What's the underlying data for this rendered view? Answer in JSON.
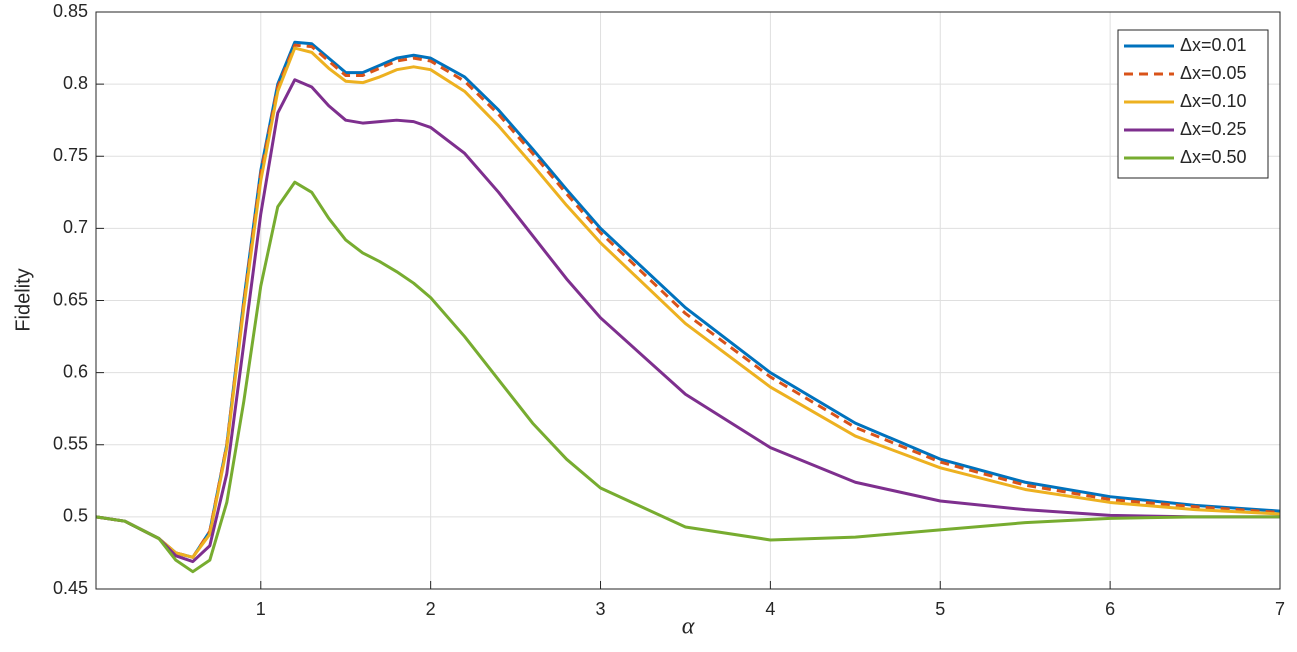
{
  "chart_data": {
    "type": "line",
    "xlabel": "α",
    "ylabel": "Fidelity",
    "x": [
      0.03,
      0.2,
      0.4,
      0.5,
      0.6,
      0.7,
      0.8,
      0.9,
      1.0,
      1.1,
      1.2,
      1.3,
      1.4,
      1.5,
      1.6,
      1.7,
      1.8,
      1.9,
      2.0,
      2.2,
      2.4,
      2.6,
      2.8,
      3.0,
      3.5,
      4.0,
      4.5,
      5.0,
      5.5,
      6.0,
      6.5,
      7.0
    ],
    "series": [
      {
        "name": "Δx=0.01",
        "color": "#0072bd",
        "linestyle": "solid",
        "values": [
          0.5,
          0.497,
          0.485,
          0.475,
          0.472,
          0.49,
          0.55,
          0.65,
          0.74,
          0.8,
          0.829,
          0.828,
          0.818,
          0.808,
          0.808,
          0.813,
          0.818,
          0.82,
          0.818,
          0.805,
          0.782,
          0.755,
          0.727,
          0.7,
          0.645,
          0.6,
          0.565,
          0.54,
          0.524,
          0.514,
          0.508,
          0.504
        ]
      },
      {
        "name": "Δx=0.05",
        "color": "#d95319",
        "linestyle": "dashed",
        "values": [
          0.5,
          0.497,
          0.485,
          0.475,
          0.472,
          0.49,
          0.55,
          0.648,
          0.738,
          0.798,
          0.827,
          0.826,
          0.816,
          0.806,
          0.806,
          0.811,
          0.816,
          0.818,
          0.816,
          0.802,
          0.779,
          0.752,
          0.724,
          0.697,
          0.641,
          0.597,
          0.562,
          0.538,
          0.522,
          0.512,
          0.507,
          0.503
        ]
      },
      {
        "name": "Δx=0.10",
        "color": "#edb120",
        "linestyle": "solid",
        "values": [
          0.5,
          0.497,
          0.485,
          0.475,
          0.472,
          0.488,
          0.548,
          0.645,
          0.733,
          0.795,
          0.825,
          0.822,
          0.811,
          0.802,
          0.801,
          0.805,
          0.81,
          0.812,
          0.81,
          0.795,
          0.771,
          0.744,
          0.716,
          0.69,
          0.634,
          0.59,
          0.556,
          0.534,
          0.519,
          0.51,
          0.505,
          0.502
        ]
      },
      {
        "name": "Δx=0.25",
        "color": "#7e2f8e",
        "linestyle": "solid",
        "values": [
          0.5,
          0.497,
          0.485,
          0.473,
          0.469,
          0.48,
          0.53,
          0.62,
          0.71,
          0.78,
          0.803,
          0.798,
          0.785,
          0.775,
          0.773,
          0.774,
          0.775,
          0.774,
          0.77,
          0.752,
          0.725,
          0.695,
          0.665,
          0.638,
          0.585,
          0.548,
          0.524,
          0.511,
          0.505,
          0.501,
          0.5,
          0.5
        ]
      },
      {
        "name": "Δx=0.50",
        "color": "#77ac30",
        "linestyle": "solid",
        "values": [
          0.5,
          0.497,
          0.485,
          0.47,
          0.462,
          0.47,
          0.51,
          0.58,
          0.66,
          0.715,
          0.732,
          0.725,
          0.707,
          0.692,
          0.683,
          0.677,
          0.67,
          0.662,
          0.652,
          0.625,
          0.595,
          0.565,
          0.54,
          0.52,
          0.493,
          0.484,
          0.486,
          0.491,
          0.496,
          0.499,
          0.5,
          0.5
        ]
      }
    ],
    "xlim": [
      0.03,
      7
    ],
    "ylim": [
      0.45,
      0.85
    ],
    "xticks": [
      1,
      2,
      3,
      4,
      5,
      6,
      7
    ],
    "yticks": [
      0.45,
      0.5,
      0.55,
      0.6,
      0.65,
      0.7,
      0.75,
      0.8,
      0.85
    ],
    "grid": true,
    "legend": "northeast"
  }
}
